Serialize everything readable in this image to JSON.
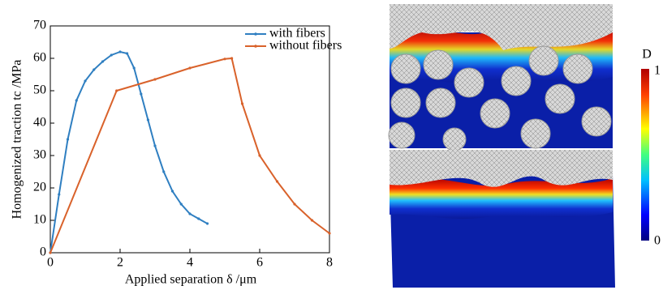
{
  "chart_data": {
    "type": "line",
    "xlabel": "Applied separation δ /μm",
    "ylabel": "Homogenized traction tc /MPa",
    "xlim": [
      0,
      8
    ],
    "xticks": [
      0,
      2,
      4,
      6,
      8
    ],
    "ylim": [
      0,
      70
    ],
    "yticks": [
      0,
      10,
      20,
      30,
      40,
      50,
      60,
      70
    ],
    "legend": "upper right",
    "series": [
      {
        "name": "with fibers",
        "color": "#2f7fc1",
        "x": [
          0,
          0.25,
          0.5,
          0.75,
          1.0,
          1.25,
          1.5,
          1.75,
          2.0,
          2.2,
          2.4,
          2.6,
          2.8,
          3.0,
          3.25,
          3.5,
          3.75,
          4.0,
          4.25,
          4.5
        ],
        "values": [
          0,
          18,
          35,
          47,
          53,
          56.5,
          59,
          61,
          62,
          61.5,
          57,
          49,
          41,
          33,
          25,
          19,
          15,
          12,
          10.5,
          9
        ]
      },
      {
        "name": "without fibers",
        "color": "#d9622b",
        "x": [
          0,
          1.9,
          3,
          4,
          5,
          5.2,
          5.5,
          6,
          6.5,
          7,
          7.5,
          8
        ],
        "values": [
          0,
          50,
          53.5,
          57,
          59.8,
          60,
          46,
          30,
          22,
          15,
          10,
          6
        ]
      }
    ]
  },
  "colorbar": {
    "label": "D",
    "max": 1,
    "min": 0
  }
}
